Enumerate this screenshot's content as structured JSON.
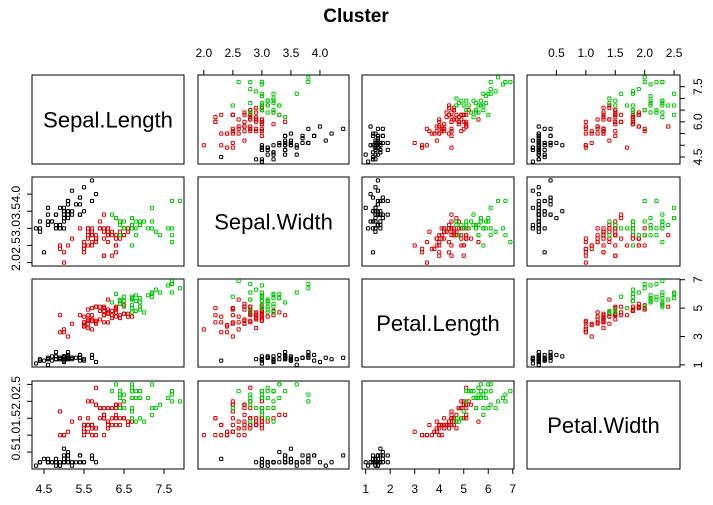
{
  "chart_data": {
    "type": "scatter",
    "title": "Cluster",
    "variables": [
      "Sepal.Length",
      "Sepal.Width",
      "Petal.Length",
      "Petal.Width"
    ],
    "axis_ranges": {
      "Sepal.Length": [
        4.2,
        8.0
      ],
      "Sepal.Width": [
        1.9,
        4.5
      ],
      "Petal.Length": [
        0.85,
        7.05
      ],
      "Petal.Width": [
        0.0,
        2.6
      ]
    },
    "ticks": {
      "Sepal.Length": [
        4.5,
        5.5,
        6.5,
        7.5
      ],
      "Sepal.Width": [
        2.0,
        2.5,
        3.0,
        3.5,
        4.0
      ],
      "Petal.Length": [
        1,
        2,
        3,
        4,
        5,
        6,
        7
      ],
      "Petal.Width": [
        0.5,
        1.0,
        1.5,
        2.0,
        2.5
      ]
    },
    "tick_labels": {
      "Sepal.Length": [
        "4.5",
        "5.5",
        "6.5",
        "7.5"
      ],
      "Sepal.Width": [
        "2.0",
        "2.5",
        "3.0",
        "3.5",
        "4.0"
      ],
      "Petal.Length": [
        "1",
        "2",
        "3",
        "4",
        "5",
        "6",
        "7"
      ],
      "Petal.Width": [
        "0.5",
        "1.0",
        "1.5",
        "2.0",
        "2.5"
      ]
    },
    "top_axis_ticks": {
      "Sepal.Width": [
        2.0,
        2.5,
        3.0,
        3.5,
        4.0
      ],
      "Petal.Width": [
        0.5,
        1.0,
        1.5,
        2.0,
        2.5
      ]
    },
    "top_axis_labels": {
      "Sepal.Width": [
        "2.0",
        "2.5",
        "3.0",
        "3.5",
        "4.0"
      ],
      "Petal.Width": [
        "0.5",
        "1.0",
        "1.5",
        "2.0",
        "2.5"
      ]
    },
    "right_axis_ticks": {
      "Sepal.Length": [
        4.5,
        5.0,
        5.5,
        6.0,
        6.5,
        7.0,
        7.5
      ],
      "Petal.Length": [
        1,
        3,
        5,
        7
      ]
    },
    "right_axis_labels": {
      "Sepal.Length": [
        "4.5",
        "",
        "",
        "6.0",
        "",
        "",
        "7.5"
      ],
      "Petal.Length": [
        "1",
        "3",
        "5",
        "7"
      ]
    },
    "grid": false,
    "legend": "none",
    "series": [
      {
        "color": "#000000",
        "points": [
          [
            5.1,
            3.5,
            1.4,
            0.2
          ],
          [
            4.9,
            3.0,
            1.4,
            0.2
          ],
          [
            4.7,
            3.2,
            1.3,
            0.2
          ],
          [
            4.6,
            3.1,
            1.5,
            0.2
          ],
          [
            5.0,
            3.6,
            1.4,
            0.2
          ],
          [
            5.4,
            3.9,
            1.7,
            0.4
          ],
          [
            4.6,
            3.4,
            1.4,
            0.3
          ],
          [
            5.0,
            3.4,
            1.5,
            0.2
          ],
          [
            4.4,
            2.9,
            1.4,
            0.2
          ],
          [
            4.9,
            3.1,
            1.5,
            0.1
          ],
          [
            5.4,
            3.7,
            1.5,
            0.2
          ],
          [
            4.8,
            3.4,
            1.6,
            0.2
          ],
          [
            4.8,
            3.0,
            1.4,
            0.1
          ],
          [
            4.3,
            3.0,
            1.1,
            0.1
          ],
          [
            5.8,
            4.0,
            1.2,
            0.2
          ],
          [
            5.7,
            4.4,
            1.5,
            0.4
          ],
          [
            5.4,
            3.9,
            1.3,
            0.4
          ],
          [
            5.1,
            3.5,
            1.4,
            0.3
          ],
          [
            5.7,
            3.8,
            1.7,
            0.3
          ],
          [
            5.1,
            3.8,
            1.5,
            0.3
          ],
          [
            5.4,
            3.4,
            1.7,
            0.2
          ],
          [
            5.1,
            3.7,
            1.5,
            0.4
          ],
          [
            4.6,
            3.6,
            1.0,
            0.2
          ],
          [
            5.1,
            3.3,
            1.7,
            0.5
          ],
          [
            4.8,
            3.4,
            1.9,
            0.2
          ],
          [
            5.0,
            3.0,
            1.6,
            0.2
          ],
          [
            5.0,
            3.4,
            1.6,
            0.4
          ],
          [
            5.2,
            3.5,
            1.5,
            0.2
          ],
          [
            5.2,
            3.4,
            1.4,
            0.2
          ],
          [
            4.7,
            3.2,
            1.6,
            0.2
          ],
          [
            4.8,
            3.1,
            1.6,
            0.2
          ],
          [
            5.4,
            3.4,
            1.5,
            0.4
          ],
          [
            5.2,
            4.1,
            1.5,
            0.1
          ],
          [
            5.5,
            4.2,
            1.4,
            0.2
          ],
          [
            4.9,
            3.1,
            1.5,
            0.2
          ],
          [
            5.0,
            3.2,
            1.2,
            0.2
          ],
          [
            5.5,
            3.5,
            1.3,
            0.2
          ],
          [
            4.9,
            3.6,
            1.4,
            0.1
          ],
          [
            4.4,
            3.0,
            1.3,
            0.2
          ],
          [
            5.1,
            3.4,
            1.5,
            0.2
          ],
          [
            5.0,
            3.5,
            1.3,
            0.3
          ],
          [
            4.5,
            2.3,
            1.3,
            0.3
          ],
          [
            4.4,
            3.2,
            1.3,
            0.2
          ],
          [
            5.0,
            3.5,
            1.6,
            0.6
          ],
          [
            5.1,
            3.8,
            1.9,
            0.4
          ],
          [
            4.8,
            3.0,
            1.4,
            0.3
          ],
          [
            5.1,
            3.8,
            1.6,
            0.2
          ],
          [
            4.6,
            3.2,
            1.4,
            0.2
          ],
          [
            5.3,
            3.7,
            1.5,
            0.2
          ],
          [
            5.0,
            3.3,
            1.4,
            0.2
          ]
        ]
      },
      {
        "color": "#df0000",
        "points": [
          [
            5.5,
            2.3,
            4.0,
            1.3
          ],
          [
            6.5,
            2.8,
            4.6,
            1.5
          ],
          [
            5.7,
            2.8,
            4.5,
            1.3
          ],
          [
            6.3,
            3.3,
            4.7,
            1.6
          ],
          [
            4.9,
            2.4,
            3.3,
            1.0
          ],
          [
            6.6,
            2.9,
            4.6,
            1.3
          ],
          [
            5.2,
            2.7,
            3.9,
            1.4
          ],
          [
            5.0,
            2.0,
            3.5,
            1.0
          ],
          [
            5.9,
            3.0,
            4.2,
            1.5
          ],
          [
            6.0,
            2.2,
            4.0,
            1.0
          ],
          [
            6.1,
            2.9,
            4.7,
            1.4
          ],
          [
            5.6,
            2.9,
            3.6,
            1.3
          ],
          [
            5.6,
            3.0,
            4.5,
            1.5
          ],
          [
            5.8,
            2.7,
            4.1,
            1.0
          ],
          [
            6.2,
            2.2,
            4.5,
            1.5
          ],
          [
            5.6,
            2.5,
            3.9,
            1.1
          ],
          [
            5.9,
            3.2,
            4.8,
            1.8
          ],
          [
            6.1,
            2.8,
            4.0,
            1.3
          ],
          [
            6.3,
            2.5,
            4.9,
            1.5
          ],
          [
            6.1,
            2.8,
            4.7,
            1.2
          ],
          [
            6.4,
            2.9,
            4.3,
            1.3
          ],
          [
            6.6,
            3.0,
            4.4,
            1.4
          ],
          [
            6.0,
            2.9,
            4.5,
            1.5
          ],
          [
            5.7,
            2.6,
            3.5,
            1.0
          ],
          [
            5.5,
            2.4,
            3.8,
            1.1
          ],
          [
            5.5,
            2.4,
            3.7,
            1.0
          ],
          [
            5.8,
            2.7,
            3.9,
            1.2
          ],
          [
            6.0,
            2.7,
            5.1,
            1.6
          ],
          [
            5.4,
            3.0,
            4.5,
            1.5
          ],
          [
            6.0,
            3.4,
            4.5,
            1.6
          ],
          [
            6.3,
            2.3,
            4.4,
            1.3
          ],
          [
            5.6,
            3.0,
            4.1,
            1.3
          ],
          [
            5.5,
            2.5,
            4.0,
            1.3
          ],
          [
            5.5,
            2.6,
            4.4,
            1.2
          ],
          [
            6.1,
            3.0,
            4.6,
            1.4
          ],
          [
            5.8,
            2.6,
            4.0,
            1.2
          ],
          [
            5.0,
            2.3,
            3.3,
            1.0
          ],
          [
            5.6,
            2.7,
            4.2,
            1.3
          ],
          [
            5.7,
            3.0,
            4.2,
            1.2
          ],
          [
            5.7,
            2.9,
            4.2,
            1.3
          ],
          [
            6.2,
            2.9,
            4.3,
            1.3
          ],
          [
            5.1,
            2.5,
            3.0,
            1.1
          ],
          [
            5.7,
            2.8,
            4.1,
            1.3
          ],
          [
            5.8,
            2.7,
            5.1,
            1.9
          ],
          [
            4.9,
            2.5,
            4.5,
            1.7
          ],
          [
            5.7,
            2.5,
            5.0,
            2.0
          ],
          [
            5.8,
            2.8,
            5.1,
            2.4
          ],
          [
            6.4,
            2.7,
            5.3,
            1.9
          ],
          [
            6.0,
            2.2,
            5.0,
            1.5
          ],
          [
            5.6,
            2.8,
            4.9,
            2.0
          ],
          [
            6.3,
            2.7,
            4.9,
            1.8
          ],
          [
            6.2,
            2.8,
            4.8,
            1.8
          ],
          [
            6.1,
            3.0,
            4.9,
            1.8
          ],
          [
            6.3,
            2.8,
            5.1,
            1.5
          ],
          [
            6.1,
            2.6,
            5.6,
            1.4
          ],
          [
            6.0,
            3.0,
            4.8,
            1.8
          ],
          [
            5.8,
            2.7,
            5.1,
            1.9
          ],
          [
            6.3,
            2.5,
            5.0,
            1.9
          ],
          [
            6.5,
            3.0,
            5.2,
            2.0
          ],
          [
            5.9,
            3.0,
            5.1,
            1.8
          ],
          [
            6.7,
            3.1,
            4.4,
            1.4
          ],
          [
            6.4,
            3.2,
            4.5,
            1.5
          ],
          [
            6.3,
            2.5,
            5.0,
            1.9
          ],
          [
            6.5,
            2.8,
            4.6,
            1.5
          ]
        ]
      },
      {
        "color": "#00c800",
        "points": [
          [
            7.0,
            3.2,
            4.7,
            1.4
          ],
          [
            6.9,
            3.1,
            4.9,
            1.5
          ],
          [
            6.7,
            3.0,
            5.0,
            1.7
          ],
          [
            6.8,
            2.8,
            4.8,
            1.4
          ],
          [
            6.7,
            3.1,
            4.7,
            1.5
          ],
          [
            6.3,
            3.3,
            6.0,
            2.5
          ],
          [
            7.1,
            3.0,
            5.9,
            2.1
          ],
          [
            6.5,
            3.0,
            5.8,
            2.2
          ],
          [
            7.6,
            3.0,
            6.6,
            2.1
          ],
          [
            7.3,
            2.9,
            6.3,
            1.8
          ],
          [
            6.7,
            2.5,
            5.8,
            1.8
          ],
          [
            7.2,
            3.6,
            6.1,
            2.5
          ],
          [
            6.5,
            3.2,
            5.1,
            2.0
          ],
          [
            6.8,
            3.0,
            5.5,
            2.1
          ],
          [
            6.4,
            3.2,
            5.3,
            2.3
          ],
          [
            6.5,
            3.0,
            5.5,
            1.8
          ],
          [
            7.7,
            3.8,
            6.7,
            2.2
          ],
          [
            7.7,
            2.6,
            6.9,
            2.3
          ],
          [
            6.9,
            3.2,
            5.7,
            2.3
          ],
          [
            7.7,
            2.8,
            6.7,
            2.0
          ],
          [
            6.7,
            3.3,
            5.7,
            2.1
          ],
          [
            7.2,
            3.2,
            6.0,
            1.8
          ],
          [
            6.4,
            2.8,
            5.6,
            2.1
          ],
          [
            7.2,
            3.0,
            5.8,
            1.6
          ],
          [
            7.4,
            2.8,
            6.1,
            1.9
          ],
          [
            7.9,
            3.8,
            6.4,
            2.0
          ],
          [
            6.4,
            2.8,
            5.6,
            2.2
          ],
          [
            7.7,
            3.0,
            6.1,
            2.3
          ],
          [
            6.4,
            3.1,
            5.5,
            1.8
          ],
          [
            6.9,
            3.1,
            5.4,
            2.1
          ],
          [
            6.7,
            3.1,
            5.6,
            2.4
          ],
          [
            6.9,
            3.1,
            5.1,
            2.3
          ],
          [
            6.8,
            3.2,
            5.9,
            2.3
          ],
          [
            6.7,
            3.3,
            5.7,
            2.5
          ],
          [
            6.7,
            3.0,
            5.2,
            2.3
          ],
          [
            6.2,
            3.4,
            5.4,
            2.3
          ]
        ]
      }
    ]
  }
}
